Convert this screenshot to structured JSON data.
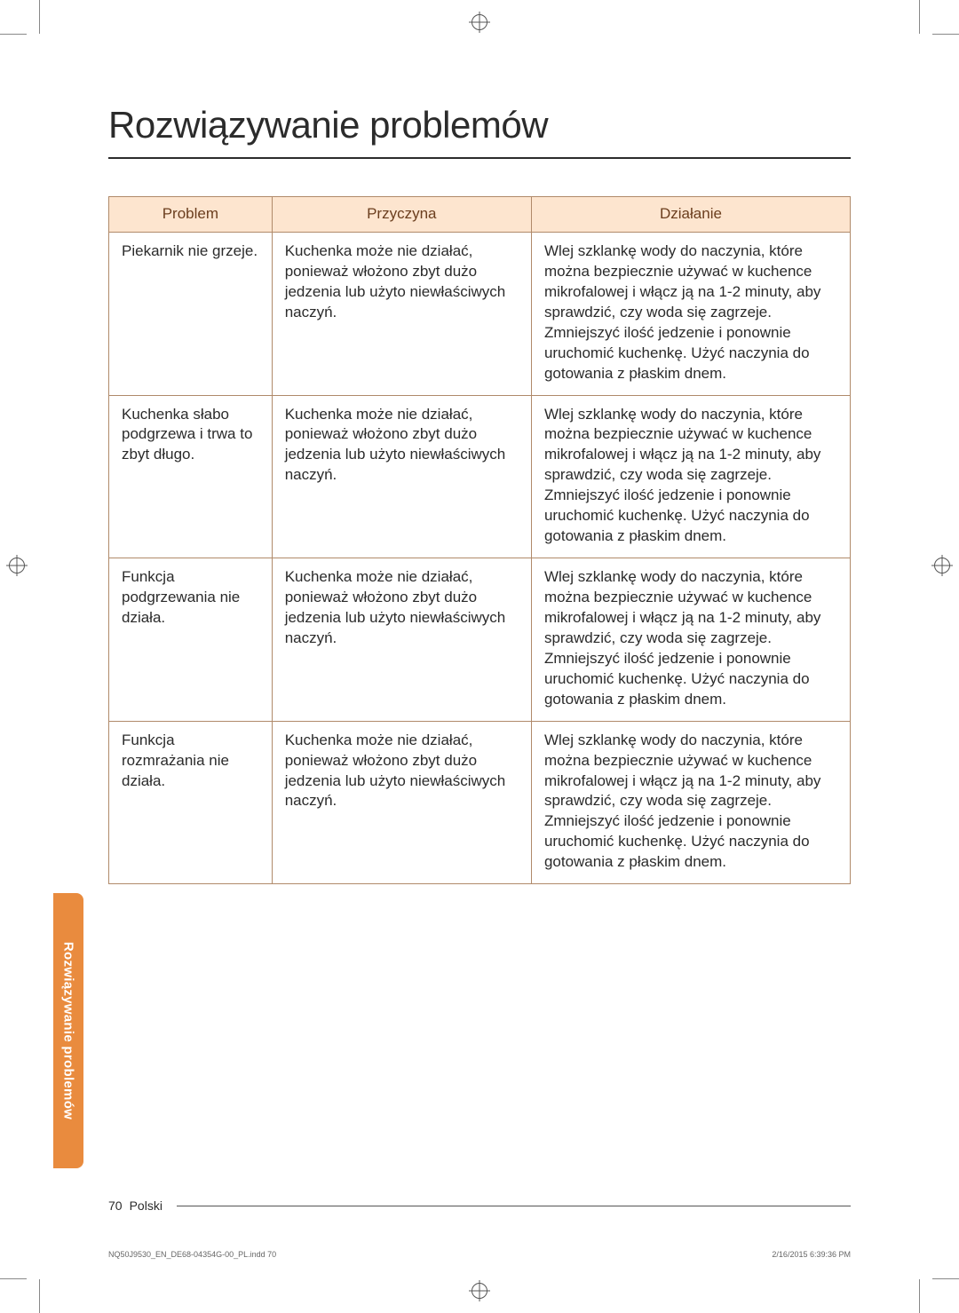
{
  "title": "Rozwiązywanie problemów",
  "sideTab": "Rozwiązywanie problemów",
  "table": {
    "headers": [
      "Problem",
      "Przyczyna",
      "Działanie"
    ],
    "headerBg": "#fde5cf",
    "headerColor": "#6b3e1e",
    "borderColor": "#b08a6a",
    "rows": [
      {
        "problem": "Piekarnik nie grzeje.",
        "cause": "Kuchenka może nie działać, ponieważ włożono zbyt dużo jedzenia lub użyto niewłaściwych naczyń.",
        "action": "Wlej szklankę wody do naczynia, które można bezpiecznie używać w kuchence mikrofalowej i włącz ją na 1-2 minuty, aby sprawdzić, czy woda się zagrzeje. Zmniejszyć ilość jedzenie i ponownie uruchomić kuchenkę. Użyć naczynia do gotowania z płaskim dnem."
      },
      {
        "problem": "Kuchenka słabo podgrzewa i trwa to zbyt długo.",
        "cause": "Kuchenka może nie działać, ponieważ włożono zbyt dużo jedzenia lub użyto niewłaściwych naczyń.",
        "action": "Wlej szklankę wody do naczynia, które można bezpiecznie używać w kuchence mikrofalowej i włącz ją na 1-2 minuty, aby sprawdzić, czy woda się zagrzeje. Zmniejszyć ilość jedzenie i ponownie uruchomić kuchenkę. Użyć naczynia do gotowania z płaskim dnem."
      },
      {
        "problem": "Funkcja podgrzewania nie działa.",
        "cause": "Kuchenka może nie działać, ponieważ włożono zbyt dużo jedzenia lub użyto niewłaściwych naczyń.",
        "action": "Wlej szklankę wody do naczynia, które można bezpiecznie używać w kuchence mikrofalowej i włącz ją na 1-2 minuty, aby sprawdzić, czy woda się zagrzeje. Zmniejszyć ilość jedzenie i ponownie uruchomić kuchenkę. Użyć naczynia do gotowania z płaskim dnem."
      },
      {
        "problem": "Funkcja rozmrażania nie działa.",
        "cause": "Kuchenka może nie działać, ponieważ włożono zbyt dużo jedzenia lub użyto niewłaściwych naczyń.",
        "action": "Wlej szklankę wody do naczynia, które można bezpiecznie używać w kuchence mikrofalowej i włącz ją na 1-2 minuty, aby sprawdzić, czy woda się zagrzeje. Zmniejszyć ilość jedzenie i ponownie uruchomić kuchenkę. Użyć naczynia do gotowania z płaskim dnem."
      }
    ]
  },
  "footer": {
    "pageNumber": "70",
    "language": "Polski"
  },
  "imprint": {
    "left": "NQ50J9530_EN_DE68-04354G-00_PL.indd   70",
    "right": "2/16/2015   6:39:36 PM"
  },
  "colors": {
    "sideTabBg": "#e98b3e",
    "text": "#2b2b2b"
  }
}
